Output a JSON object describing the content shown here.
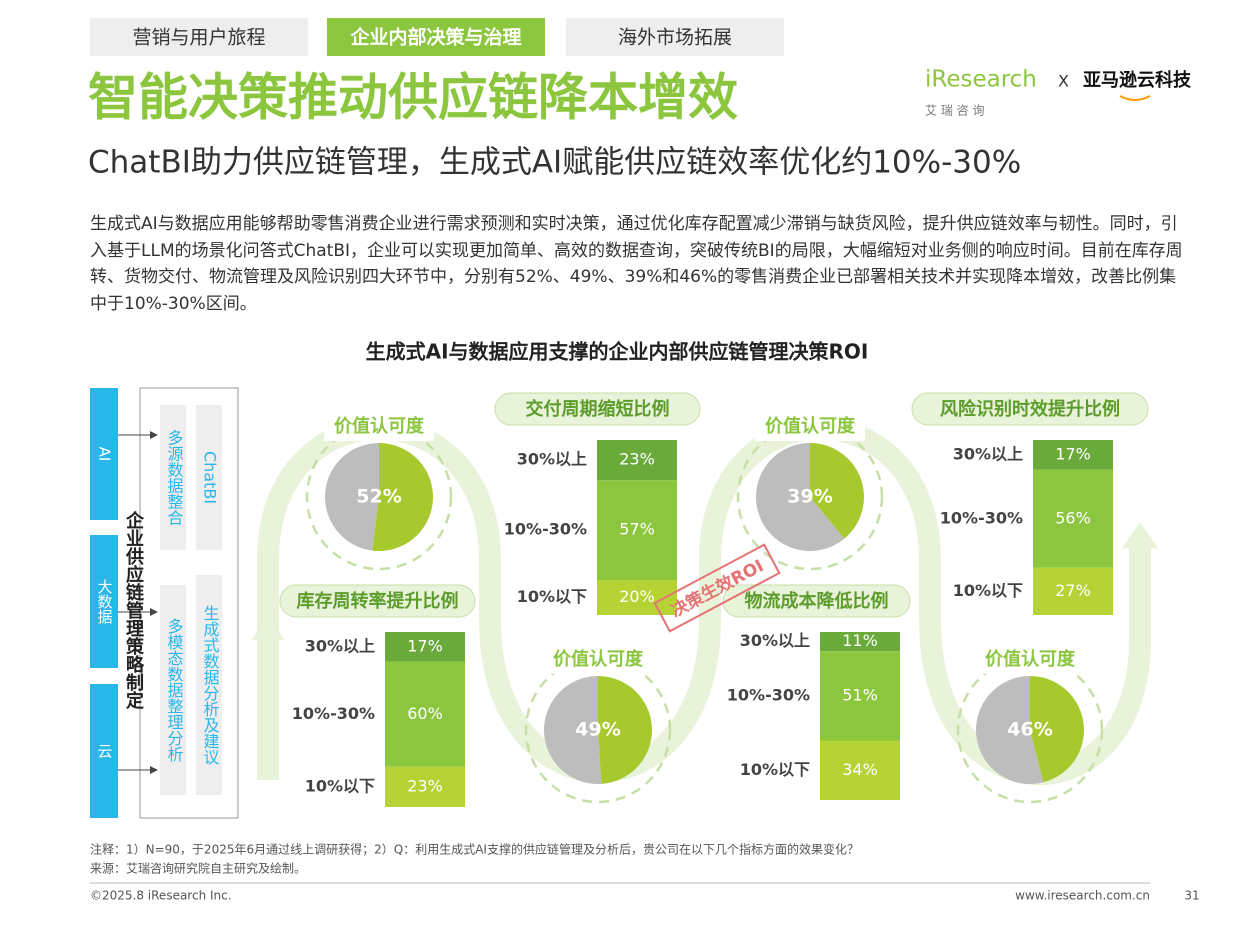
{
  "tabs": [
    "营销与用户旅程",
    "企业内部决策与治理",
    "海外市场拓展"
  ],
  "logo": {
    "brand": "iResearch",
    "brand_sub": "艾 瑞 咨 询",
    "joiner": "X",
    "partner": "亚马逊云科技"
  },
  "title": "智能决策推动供应链降本增效",
  "subtitle": "ChatBI助力供应链管理，生成式AI赋能供应链效率优化约10%-30%",
  "body": "生成式AI与数据应用能够帮助零售消费企业进行需求预测和实时决策，通过优化库存配置减少滞销与缺货风险，提升供应链效率与韧性。同时，引入基于LLM的场景化问答式ChatBI，企业可以实现更加简单、高效的数据查询，突破传统BI的局限，大幅缩短对业务侧的响应时间。目前在库存周转、货物交付、物流管理及风险识别四大环节中，分别有52%、49%、39%和46%的零售消费企业已部署相关技术并实现降本增效，改善比例集中于10%-30%区间。",
  "figure": {
    "title": "生成式AI与数据应用支撑的企业内部供应链管理决策ROI",
    "inputs": [
      "AI",
      "大数据",
      "云"
    ],
    "strategy": "企业供应链管理策略制定",
    "modules": [
      "多源数据整合",
      "ChatBI",
      "多模态数据整理分析",
      "生成式数据分析及建议"
    ],
    "stamp": "决策生效ROI",
    "panels": [
      {
        "title": "库存周转率提升比例",
        "pie_title": "价值认可度",
        "pie": {
          "value": 52,
          "label": "52%"
        },
        "bar": {
          "categories": [
            "30%以上",
            "10%-30%",
            "10%以下"
          ],
          "values": [
            17,
            60,
            23
          ],
          "value_labels": [
            "17%",
            "60%",
            "23%"
          ]
        }
      },
      {
        "title": "交付周期缩短比例",
        "pie_title": "价值认可度",
        "pie": {
          "value": 49,
          "label": "49%"
        },
        "bar": {
          "categories": [
            "30%以上",
            "10%-30%",
            "10%以下"
          ],
          "values": [
            23,
            57,
            20
          ],
          "value_labels": [
            "23%",
            "57%",
            "20%"
          ]
        }
      },
      {
        "title": "物流成本降低比例",
        "pie_title": "价值认可度",
        "pie": {
          "value": 39,
          "label": "39%"
        },
        "bar": {
          "categories": [
            "30%以上",
            "10%-30%",
            "10%以下"
          ],
          "values": [
            11,
            51,
            34
          ],
          "value_labels": [
            "11%",
            "51%",
            "34%"
          ]
        }
      },
      {
        "title": "风险识别时效提升比例",
        "pie_title": "价值认可度",
        "pie": {
          "value": 46,
          "label": "46%"
        },
        "bar": {
          "categories": [
            "30%以上",
            "10%-30%",
            "10%以下"
          ],
          "values": [
            17,
            56,
            27
          ],
          "value_labels": [
            "17%",
            "56%",
            "27%"
          ]
        }
      }
    ]
  },
  "notes": [
    "注释：1）N=90，于2025年6月通过线上调研获得；2）Q：利用生成式AI支撑的供应链管理及分析后，贵公司在以下几个指标方面的效果变化？",
    "来源：艾瑞咨询研究院自主研究及绘制。"
  ],
  "footer": {
    "copyright": "©2025.8 iResearch Inc.",
    "url": "www.iresearch.com.cn",
    "page": "31"
  }
}
